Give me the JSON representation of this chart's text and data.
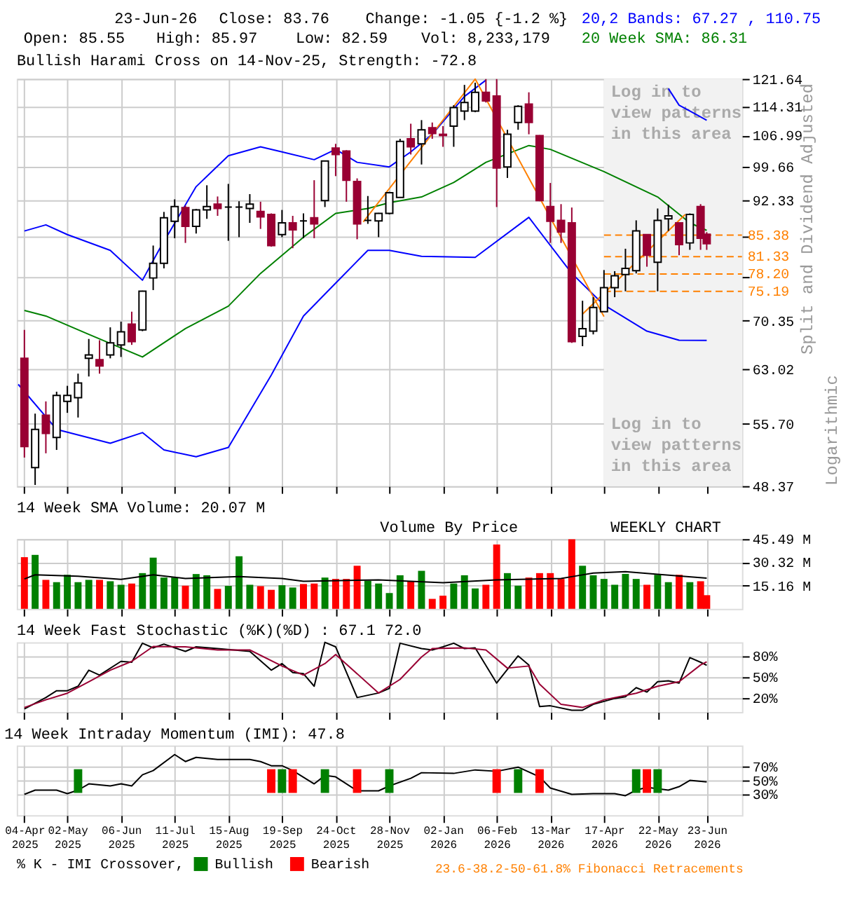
{
  "chart_data": [
    {
      "type": "candlestick",
      "title": "Bullish Harami Cross on 14-Nov-25, Strength: -72.8",
      "x": [
        "2025-04-04",
        "2025-04-11",
        "2025-04-18",
        "2025-04-25",
        "2025-05-02",
        "2025-05-09",
        "2025-05-16",
        "2025-05-23",
        "2025-05-30",
        "2025-06-06",
        "2025-06-13",
        "2025-06-20",
        "2025-06-27",
        "2025-07-04",
        "2025-07-11",
        "2025-07-18",
        "2025-07-25",
        "2025-08-01",
        "2025-08-08",
        "2025-08-15",
        "2025-08-22",
        "2025-08-29",
        "2025-09-05",
        "2025-09-12",
        "2025-09-19",
        "2025-09-26",
        "2025-10-03",
        "2025-10-10",
        "2025-10-17",
        "2025-10-24",
        "2025-10-31",
        "2025-11-07",
        "2025-11-14",
        "2025-11-21",
        "2025-11-28",
        "2025-12-05",
        "2025-12-12",
        "2025-12-19",
        "2025-12-26",
        "2026-01-02",
        "2026-01-09",
        "2026-01-16",
        "2026-01-23",
        "2026-01-30",
        "2026-02-06",
        "2026-02-13",
        "2026-02-20",
        "2026-02-27",
        "2026-03-06",
        "2026-03-13",
        "2026-03-20",
        "2026-03-27",
        "2026-04-03",
        "2026-04-10",
        "2026-04-17",
        "2026-04-24",
        "2026-05-01",
        "2026-05-08",
        "2026-05-15",
        "2026-05-22",
        "2026-05-29",
        "2026-06-05",
        "2026-06-12",
        "2026-06-19",
        "2026-06-23"
      ],
      "ohlc": [
        [
          64.6,
          68.9,
          51.6,
          52.9
        ],
        [
          50.45,
          57.0,
          48.5,
          55.0
        ],
        [
          56.8,
          58.6,
          52.1,
          54.5
        ],
        [
          54.0,
          59.9,
          52.5,
          59.4
        ],
        [
          58.6,
          60.7,
          57.1,
          59.4
        ],
        [
          59.1,
          62.4,
          56.5,
          61.1
        ],
        [
          64.6,
          67.5,
          62.0,
          65.1
        ],
        [
          64.4,
          67.3,
          62.4,
          63.5
        ],
        [
          65.1,
          69.3,
          64.6,
          66.9
        ],
        [
          66.6,
          70.2,
          64.8,
          68.6
        ],
        [
          69.8,
          71.8,
          66.6,
          67.1
        ],
        [
          68.9,
          75.3,
          68.7,
          75.2
        ],
        [
          77.5,
          83.4,
          75.4,
          80.1
        ],
        [
          80.1,
          90.0,
          79.2,
          88.8
        ],
        [
          88.1,
          92.6,
          84.8,
          91.1
        ],
        [
          90.9,
          91.3,
          83.9,
          87.1
        ],
        [
          87.1,
          90.6,
          85.7,
          90.4
        ],
        [
          90.4,
          95.6,
          88.6,
          91.1
        ],
        [
          91.6,
          93.2,
          89.2,
          90.7
        ],
        [
          91.0,
          95.9,
          84.3,
          91.0
        ],
        [
          91.0,
          92.2,
          85.0,
          91.0
        ],
        [
          90.7,
          93.7,
          87.8,
          91.6
        ],
        [
          90.1,
          92.1,
          86.6,
          89.0
        ],
        [
          89.5,
          89.7,
          83.2,
          83.4
        ],
        [
          85.5,
          90.4,
          85.0,
          87.8
        ],
        [
          87.8,
          89.2,
          82.9,
          86.4
        ],
        [
          88.2,
          89.7,
          84.8,
          88.2
        ],
        [
          88.8,
          96.7,
          84.8,
          87.6
        ],
        [
          92.33,
          101.0,
          91.0,
          101.0
        ],
        [
          104.0,
          105.0,
          97.6,
          102.5
        ],
        [
          103.3,
          103.5,
          92.1,
          96.7
        ],
        [
          96.4,
          97.1,
          84.6,
          87.6
        ],
        [
          88.3,
          93.3,
          87.6,
          88.3
        ],
        [
          88.2,
          89.8,
          85.0,
          89.7
        ],
        [
          89.7,
          94.2,
          89.5,
          94.0
        ],
        [
          93.0,
          106.2,
          93.0,
          105.6
        ],
        [
          106.2,
          109.9,
          102.5,
          104.3
        ],
        [
          105.0,
          110.8,
          100.2,
          108.4
        ],
        [
          108.9,
          110.2,
          106.2,
          107.5
        ],
        [
          107.3,
          109.3,
          104.3,
          107.0
        ],
        [
          109.3,
          114.6,
          104.3,
          114.0
        ],
        [
          113.1,
          120.0,
          110.8,
          115.3
        ],
        [
          113.1,
          120.6,
          112.8,
          118.0
        ],
        [
          118.0,
          121.6,
          115.3,
          115.7
        ],
        [
          117.0,
          121.6,
          91.0,
          99.4
        ],
        [
          99.66,
          108.4,
          97.2,
          107.3
        ],
        [
          110.2,
          114.6,
          108.4,
          114.31
        ],
        [
          114.9,
          118.0,
          107.3,
          110.2
        ],
        [
          106.99,
          107.1,
          92.2,
          92.33
        ],
        [
          91.1,
          96.1,
          83.9,
          88.1
        ],
        [
          88.3,
          91.6,
          83.9,
          86.0
        ],
        [
          87.8,
          90.9,
          66.9,
          67.1
        ],
        [
          67.9,
          73.6,
          66.4,
          69.1
        ],
        [
          68.7,
          74.2,
          68.2,
          72.5
        ],
        [
          71.8,
          78.9,
          71.8,
          75.8
        ],
        [
          75.8,
          78.7,
          74.2,
          77.9
        ],
        [
          78.1,
          82.8,
          75.2,
          79.2
        ],
        [
          78.8,
          88.3,
          78.3,
          86.2
        ],
        [
          85.5,
          85.5,
          79.5,
          81.6
        ],
        [
          80.3,
          90.7,
          75.2,
          88.3
        ],
        [
          88.6,
          91.5,
          86.2,
          89.2
        ],
        [
          87.8,
          87.8,
          81.6,
          83.6
        ],
        [
          83.9,
          89.7,
          82.6,
          89.5
        ],
        [
          91.1,
          91.6,
          82.6,
          84.8
        ],
        [
          85.55,
          85.97,
          82.59,
          83.76
        ]
      ],
      "series": [
        {
          "type": "line",
          "color": "#0000ff",
          "x": [
            "2025-04-04",
            "2025-04-18",
            "2025-05-02",
            "2025-05-30",
            "2025-06-20",
            "2025-07-01",
            "2025-07-25",
            "2025-08-15",
            "2025-09-05",
            "2025-09-19",
            "2025-10-10",
            "2025-10-24",
            "2025-11-07",
            "2025-11-28",
            "2025-12-12",
            "2025-12-26",
            "2026-01-16",
            "2026-01-30"
          ],
          "values": [
            86.2,
            87.4,
            85.5,
            82.5,
            77.1,
            82.7,
            95.3,
            102.2,
            104.3,
            103.1,
            101.3,
            103.7,
            100.7,
            99.66,
            103.1,
            107.3,
            116.9,
            121.3
          ]
        },
        {
          "type": "line",
          "color": "#0000ff",
          "x": [
            "2026-05-29",
            "2026-06-05",
            "2026-06-12",
            "2026-06-23"
          ],
          "values": [
            119.0,
            114.6,
            113.1,
            110.75
          ]
        },
        {
          "type": "line",
          "color": "#008000",
          "x": [
            "2025-04-04",
            "2025-04-18",
            "2025-05-16",
            "2025-06-20",
            "2025-07-18",
            "2025-08-15",
            "2025-09-05",
            "2025-10-03",
            "2025-10-24",
            "2025-11-14",
            "2025-11-28",
            "2025-12-19",
            "2026-01-09",
            "2026-01-30",
            "2026-02-27",
            "2026-03-13",
            "2026-04-17",
            "2026-05-22",
            "2026-06-12",
            "2026-06-23"
          ],
          "values": [
            72.0,
            71.1,
            68.2,
            64.8,
            69.1,
            72.7,
            78.3,
            85.0,
            89.7,
            90.7,
            91.9,
            93.1,
            96.2,
            100.7,
            104.6,
            103.7,
            98.6,
            93.1,
            87.8,
            86.31
          ]
        },
        {
          "type": "line",
          "color": "#0000ff",
          "x": [
            "2025-03-31",
            "2025-04-25",
            "2025-05-30",
            "2025-06-20",
            "2025-07-04",
            "2025-07-25",
            "2025-08-15",
            "2025-09-12",
            "2025-10-03",
            "2025-10-24",
            "2025-11-14",
            "2025-11-28",
            "2025-12-19",
            "2026-01-23",
            "2026-02-27",
            "2026-03-27",
            "2026-04-17",
            "2026-05-15",
            "2026-06-05",
            "2026-06-23"
          ],
          "values": [
            60.9,
            55.0,
            53.3,
            54.6,
            52.5,
            51.7,
            52.8,
            62.2,
            71.1,
            76.6,
            82.5,
            82.5,
            81.4,
            81.2,
            88.9,
            78.3,
            72.9,
            68.7,
            67.3,
            67.27
          ]
        },
        {
          "type": "line",
          "color": "#ff8000",
          "x": [
            "2025-11-11",
            "2026-01-23",
            "2026-04-17"
          ],
          "values": [
            88.0,
            121.6,
            71.0
          ]
        },
        {
          "type": "line",
          "color": "#ff8000",
          "x": [
            "2026-04-03",
            "2026-06-09"
          ],
          "values": [
            71.4,
            89.5
          ]
        }
      ],
      "ref_lines": [
        {
          "axis": "y",
          "value": 85.38,
          "label": "85.38",
          "color": "#ff8000",
          "line_style": "dashed"
        },
        {
          "axis": "y",
          "value": 81.33,
          "label": "81.33",
          "color": "#ff8000",
          "line_style": "dashed"
        },
        {
          "axis": "y",
          "value": 78.2,
          "label": "78.20",
          "color": "#ff8000",
          "line_style": "dashed"
        },
        {
          "axis": "y",
          "value": 75.19,
          "label": "75.19",
          "color": "#ff8000",
          "line_style": "dashed"
        }
      ],
      "bands": [
        {
          "axis": "x",
          "from": "2026-04-17",
          "to": "2026-07-16",
          "color": "#f2f2f2"
        }
      ],
      "annotations": [
        "23-Jun-26",
        "Close: 83.76",
        "Change: -1.05 {-1.2 %}",
        "Open: 85.55",
        "High: 85.97",
        "Low: 82.59",
        "Vol: 8,233,179",
        "20,2 Bands: 67.27 , 110.75",
        "20 Week SMA: 86.31",
        "Log in to view patterns in this area",
        "Log in to view patterns in this area",
        "Logarithmic"
      ],
      "ylabel": "Split and Dividend Adjusted",
      "log": true,
      "ylim": [
        48.37,
        121.64
      ],
      "yticks": [
        48.37,
        {
          "value": 55.7,
          "label": "55.70"
        },
        63.02,
        70.35,
        {
          "value": 77.68,
          "label": null
        },
        {
          "value": 85.0,
          "label": null
        },
        92.33,
        99.66,
        106.99,
        114.31,
        121.64
      ],
      "xlim": [
        "2025-03-30",
        "2026-07-16"
      ],
      "xticks": [
        {
          "value": "2025-04-04",
          "label": null
        },
        {
          "value": "2025-05-02",
          "label": null
        },
        {
          "value": "2025-06-06",
          "label": null
        },
        {
          "value": "2025-07-11",
          "label": null
        },
        {
          "value": "2025-08-15",
          "label": null
        },
        {
          "value": "2025-09-19",
          "label": null
        },
        {
          "value": "2025-10-24",
          "label": null
        },
        {
          "value": "2025-11-28",
          "label": null
        },
        {
          "value": "2026-01-02",
          "label": null
        },
        {
          "value": "2026-02-06",
          "label": null
        },
        {
          "value": "2026-03-13",
          "label": null
        },
        {
          "value": "2026-04-17",
          "label": null
        },
        {
          "value": "2026-05-22",
          "label": null
        },
        {
          "value": "2026-06-23",
          "label": null
        }
      ],
      "tick_labels": "y",
      "grid": true
    },
    {
      "type": "bar",
      "title": "14 Week SMA Volume: 20.07 M",
      "x": [
        "2025-04-04",
        "2025-04-11",
        "2025-04-18",
        "2025-04-25",
        "2025-05-02",
        "2025-05-09",
        "2025-05-16",
        "2025-05-23",
        "2025-05-30",
        "2025-06-06",
        "2025-06-13",
        "2025-06-20",
        "2025-06-27",
        "2025-07-04",
        "2025-07-11",
        "2025-07-18",
        "2025-07-25",
        "2025-08-01",
        "2025-08-08",
        "2025-08-15",
        "2025-08-22",
        "2025-08-29",
        "2025-09-05",
        "2025-09-12",
        "2025-09-19",
        "2025-09-26",
        "2025-10-03",
        "2025-10-10",
        "2025-10-17",
        "2025-10-24",
        "2025-10-31",
        "2025-11-07",
        "2025-11-14",
        "2025-11-21",
        "2025-11-28",
        "2025-12-05",
        "2025-12-12",
        "2025-12-19",
        "2025-12-26",
        "2026-01-02",
        "2026-01-09",
        "2026-01-16",
        "2026-01-23",
        "2026-01-30",
        "2026-02-06",
        "2026-02-13",
        "2026-02-20",
        "2026-02-27",
        "2026-03-06",
        "2026-03-13",
        "2026-03-20",
        "2026-03-27",
        "2026-04-03",
        "2026-04-10",
        "2026-04-17",
        "2026-04-24",
        "2026-05-01",
        "2026-05-08",
        "2026-05-15",
        "2026-05-22",
        "2026-05-29",
        "2026-06-05",
        "2026-06-12",
        "2026-06-19",
        "2026-06-23"
      ],
      "values": [
        33.7,
        35.2,
        18.9,
        17.4,
        22.2,
        17.4,
        18.9,
        18.9,
        18.0,
        15.7,
        16.5,
        23.3,
        33.4,
        20.4,
        20.4,
        15.1,
        22.7,
        21.9,
        13.0,
        15.0,
        34.3,
        15.7,
        14.8,
        12.4,
        15.4,
        13.9,
        16.2,
        16.5,
        20.4,
        19.5,
        19.5,
        28.1,
        18.3,
        16.5,
        10.3,
        21.9,
        18.0,
        24.8,
        6.5,
        8.6,
        16.5,
        21.9,
        13.3,
        15.7,
        42.0,
        23.3,
        15.1,
        20.4,
        23.3,
        23.3,
        19.5,
        45.4,
        28.1,
        21.9,
        19.5,
        15.7,
        22.8,
        19.5,
        15.7,
        22.2,
        17.4,
        22.2,
        17.4,
        18.0,
        8.9
      ],
      "colors": [
        "#ff0000",
        "#008000",
        "#ff0000",
        "#008000",
        "#008000",
        "#008000",
        "#008000",
        "#ff0000",
        "#008000",
        "#008000",
        "#ff0000",
        "#008000",
        "#008000",
        "#008000",
        "#008000",
        "#ff0000",
        "#008000",
        "#008000",
        "#ff0000",
        "#008000",
        "#008000",
        "#008000",
        "#ff0000",
        "#ff0000",
        "#008000",
        "#008000",
        "#ff0000",
        "#ff0000",
        "#008000",
        "#ff0000",
        "#ff0000",
        "#ff0000",
        "#008000",
        "#008000",
        "#008000",
        "#008000",
        "#ff0000",
        "#008000",
        "#ff0000",
        "#ff0000",
        "#008000",
        "#008000",
        "#008000",
        "#ff0000",
        "#ff0000",
        "#008000",
        "#008000",
        "#ff0000",
        "#ff0000",
        "#ff0000",
        "#ff0000",
        "#ff0000",
        "#008000",
        "#008000",
        "#008000",
        "#008000",
        "#008000",
        "#008000",
        "#ff0000",
        "#008000",
        "#008000",
        "#ff0000",
        "#008000",
        "#ff0000",
        "#ff0000"
      ],
      "series": [
        {
          "type": "line",
          "color": "#000000",
          "x": [
            "2025-04-04",
            "2025-04-11",
            "2025-05-09",
            "2025-06-06",
            "2025-06-27",
            "2025-07-18",
            "2025-08-22",
            "2025-09-19",
            "2025-10-03",
            "2025-11-21",
            "2026-01-02",
            "2026-02-06",
            "2026-03-20",
            "2026-03-27",
            "2026-04-10",
            "2026-05-01",
            "2026-05-22",
            "2026-06-23"
          ],
          "values": [
            19.5,
            22.2,
            21.3,
            19.2,
            22.2,
            19.8,
            21.0,
            19.8,
            18.0,
            18.9,
            17.1,
            18.9,
            19.8,
            21.0,
            23.3,
            24.2,
            22.5,
            20.07
          ]
        }
      ],
      "annotations": [
        "Volume By Price",
        "WEEKLY CHART"
      ],
      "ylim": [
        0,
        45.49
      ],
      "yticks": [
        {
          "value": 15.16,
          "label": "15.16 M"
        },
        {
          "value": 30.32,
          "label": "30.32 M"
        },
        {
          "value": 45.49,
          "label": "45.49 M"
        }
      ],
      "xlim": [
        "2025-03-30",
        "2026-07-16"
      ],
      "xticks": [
        {
          "value": "2025-04-04",
          "label": null
        },
        {
          "value": "2025-05-02",
          "label": null
        },
        {
          "value": "2025-06-06",
          "label": null
        },
        {
          "value": "2025-07-11",
          "label": null
        },
        {
          "value": "2025-08-15",
          "label": null
        },
        {
          "value": "2025-09-19",
          "label": null
        },
        {
          "value": "2025-10-24",
          "label": null
        },
        {
          "value": "2025-11-28",
          "label": null
        },
        {
          "value": "2026-01-02",
          "label": null
        },
        {
          "value": "2026-02-06",
          "label": null
        },
        {
          "value": "2026-03-13",
          "label": null
        },
        {
          "value": "2026-04-17",
          "label": null
        },
        {
          "value": "2026-05-22",
          "label": null
        },
        {
          "value": "2026-06-23",
          "label": null
        }
      ],
      "tick_labels": "y",
      "grid": true
    },
    {
      "type": "line",
      "title": "14 Week Fast Stochastic (%K)(%D) : 67.1 72.0",
      "series": [
        {
          "color": "#000000",
          "x": [
            "2025-04-04",
            "2025-04-18",
            "2025-04-25",
            "2025-05-02",
            "2025-05-09",
            "2025-05-16",
            "2025-05-23",
            "2025-06-06",
            "2025-06-13",
            "2025-06-20",
            "2025-06-27",
            "2025-07-04",
            "2025-07-18",
            "2025-07-25",
            "2025-08-08",
            "2025-08-29",
            "2025-09-12",
            "2025-09-19",
            "2025-09-26",
            "2025-10-03",
            "2025-10-10",
            "2025-10-17",
            "2025-10-24",
            "2025-11-07",
            "2025-11-21",
            "2025-11-28",
            "2025-12-05",
            "2025-12-19",
            "2025-12-26",
            "2026-01-02",
            "2026-01-09",
            "2026-01-16",
            "2026-01-23",
            "2026-02-06",
            "2026-02-20",
            "2026-02-27",
            "2026-03-06",
            "2026-03-13",
            "2026-03-27",
            "2026-04-03",
            "2026-04-10",
            "2026-04-24",
            "2026-05-01",
            "2026-05-08",
            "2026-05-15",
            "2026-05-22",
            "2026-05-29",
            "2026-06-05",
            "2026-06-12",
            "2026-06-19",
            "2026-06-23"
          ],
          "values": [
            4.5,
            20.8,
            30.5,
            30.5,
            37,
            60,
            53,
            72.7,
            71.4,
            98.7,
            92,
            97.4,
            87,
            93.5,
            91,
            87,
            60,
            69.5,
            56.5,
            55,
            37,
            100,
            93.5,
            20.8,
            27.3,
            33.8,
            98.7,
            91,
            89,
            93.5,
            98.7,
            91,
            92,
            41.6,
            80.5,
            67.5,
            7.8,
            9,
            2.6,
            2.6,
            11,
            19.5,
            22,
            35,
            28.6,
            43.5,
            44.8,
            41.6,
            78,
            71.4,
            67.1
          ]
        },
        {
          "color": "#990033",
          "x": [
            "2025-04-04",
            "2025-04-18",
            "2025-05-02",
            "2025-05-16",
            "2025-05-30",
            "2025-06-13",
            "2025-06-27",
            "2025-07-18",
            "2025-08-08",
            "2025-08-29",
            "2025-09-19",
            "2025-10-03",
            "2025-10-17",
            "2025-10-24",
            "2025-11-21",
            "2025-12-05",
            "2025-12-19",
            "2025-12-26",
            "2026-01-16",
            "2026-01-30",
            "2026-02-13",
            "2026-02-27",
            "2026-03-06",
            "2026-03-20",
            "2026-04-03",
            "2026-04-17",
            "2026-05-08",
            "2026-05-22",
            "2026-06-05",
            "2026-06-19",
            "2026-06-23"
          ],
          "values": [
            6.5,
            17.5,
            27,
            43.5,
            60,
            72.7,
            94,
            93.5,
            89,
            89,
            66,
            53,
            69.5,
            82.5,
            27.3,
            46.8,
            79,
            91,
            92,
            89,
            63,
            66,
            40,
            11,
            6.5,
            17.5,
            27,
            37,
            43.5,
            67.5,
            72.0
          ]
        }
      ],
      "ylim": [
        0,
        100
      ],
      "yticks": [
        {
          "value": 20,
          "label": "20%"
        },
        {
          "value": 50,
          "label": "50%"
        },
        {
          "value": 80,
          "label": "80%"
        }
      ],
      "xlim": [
        "2025-03-30",
        "2026-07-16"
      ],
      "xticks": [
        {
          "value": "2025-04-04",
          "label": null
        },
        {
          "value": "2025-05-02",
          "label": null
        },
        {
          "value": "2025-06-06",
          "label": null
        },
        {
          "value": "2025-07-11",
          "label": null
        },
        {
          "value": "2025-08-15",
          "label": null
        },
        {
          "value": "2025-09-19",
          "label": null
        },
        {
          "value": "2025-10-24",
          "label": null
        },
        {
          "value": "2025-11-28",
          "label": null
        },
        {
          "value": "2026-01-02",
          "label": null
        },
        {
          "value": "2026-02-06",
          "label": null
        },
        {
          "value": "2026-03-13",
          "label": null
        },
        {
          "value": "2026-04-17",
          "label": null
        },
        {
          "value": "2026-05-22",
          "label": null
        },
        {
          "value": "2026-06-23",
          "label": null
        }
      ],
      "tick_labels": "y",
      "grid": true
    },
    {
      "type": "line",
      "title": "14 Week Intraday Momentum (IMI): 47.8",
      "series": [
        {
          "color": "#000000",
          "x": [
            "2025-04-04",
            "2025-04-11",
            "2025-04-25",
            "2025-05-02",
            "2025-05-09",
            "2025-05-16",
            "2025-05-30",
            "2025-06-06",
            "2025-06-13",
            "2025-06-20",
            "2025-06-27",
            "2025-07-11",
            "2025-07-18",
            "2025-07-25",
            "2025-08-08",
            "2025-08-29",
            "2025-09-05",
            "2025-09-12",
            "2025-09-19",
            "2025-09-26",
            "2025-10-10",
            "2025-10-17",
            "2025-10-24",
            "2025-11-07",
            "2025-11-21",
            "2025-11-28",
            "2025-12-12",
            "2025-12-19",
            "2026-01-09",
            "2026-01-23",
            "2026-02-06",
            "2026-02-20",
            "2026-03-06",
            "2026-03-13",
            "2026-03-27",
            "2026-04-10",
            "2026-04-24",
            "2026-05-01",
            "2026-05-08",
            "2026-05-15",
            "2026-05-29",
            "2026-06-05",
            "2026-06-12",
            "2026-06-23"
          ],
          "values": [
            30,
            36,
            36,
            31,
            36,
            45,
            42,
            45,
            42,
            58,
            64,
            87,
            77,
            83,
            80,
            80,
            77,
            71,
            71,
            64,
            45,
            57,
            55,
            35,
            35,
            42,
            53,
            61,
            60,
            65,
            63,
            69,
            55,
            39,
            30,
            31,
            31,
            28,
            36,
            40,
            36,
            41,
            50,
            47.8
          ]
        },
        {
          "type": "bar",
          "name": "Bullish",
          "color": "#008000",
          "x": [
            "2025-05-09",
            "2025-09-19",
            "2025-10-17",
            "2025-11-28",
            "2026-02-20",
            "2026-05-08",
            "2026-05-22"
          ],
          "values": [
            34,
            34,
            34,
            34,
            34,
            34,
            34
          ],
          "base": [
            32,
            32,
            32,
            32,
            32,
            32,
            32
          ]
        },
        {
          "type": "bar",
          "name": "Bearish",
          "color": "#ff0000",
          "x": [
            "2025-09-12",
            "2025-09-26",
            "2025-11-07",
            "2026-02-06",
            "2026-03-06",
            "2026-05-15"
          ],
          "values": [
            34,
            34,
            34,
            34,
            34,
            34
          ],
          "base": [
            32,
            32,
            32,
            32,
            32,
            32
          ]
        }
      ],
      "legend": "bottom",
      "legend_title": "% K - IMI Crossover,",
      "annotations": [
        "23.6-38.2-50-61.8% Fibonacci Retracements"
      ],
      "ylim": [
        0,
        100
      ],
      "yticks": [
        {
          "value": 30,
          "label": "30%"
        },
        {
          "value": 50,
          "label": "50%"
        },
        {
          "value": 70,
          "label": "70%"
        }
      ],
      "xlim": [
        "2025-03-30",
        "2026-07-16"
      ],
      "xticks": [
        {
          "value": "2025-04-04",
          "label": "04-Apr 2025"
        },
        {
          "value": "2025-05-02",
          "label": "02-May 2025"
        },
        {
          "value": "2025-06-06",
          "label": "06-Jun 2025"
        },
        {
          "value": "2025-07-11",
          "label": "11-Jul 2025"
        },
        {
          "value": "2025-08-15",
          "label": "15-Aug 2025"
        },
        {
          "value": "2025-09-19",
          "label": "19-Sep 2025"
        },
        {
          "value": "2025-10-24",
          "label": "24-Oct 2025"
        },
        {
          "value": "2025-11-28",
          "label": "28-Nov 2025"
        },
        {
          "value": "2026-01-02",
          "label": "02-Jan 2026"
        },
        {
          "value": "2026-02-06",
          "label": "06-Feb 2026"
        },
        {
          "value": "2026-03-13",
          "label": "13-Mar 2026"
        },
        {
          "value": "2026-04-17",
          "label": "17-Apr 2026"
        },
        {
          "value": "2026-05-22",
          "label": "22-May 2026"
        },
        {
          "value": "2026-06-23",
          "label": "23-Jun 2026"
        }
      ],
      "grid": true
    }
  ]
}
